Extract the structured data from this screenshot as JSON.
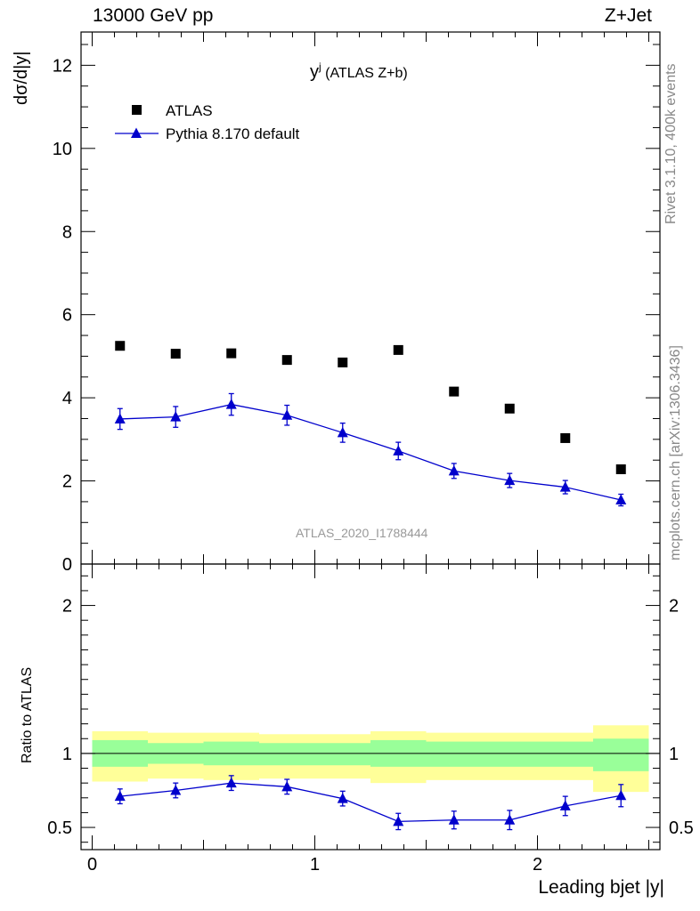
{
  "header": {
    "energy": "13000 GeV pp",
    "process": "Z+Jet"
  },
  "side_labels": {
    "rivet": "Rivet 3.1.10,  400k events",
    "source": "mcplots.cern.ch [arXiv:1306.3436]"
  },
  "chart_data": [
    {
      "type": "scatter",
      "panel": "main",
      "title_main": "y",
      "title_sup": "j",
      "title_rest": " (ATLAS Z+b)",
      "ylabel": "dσ/d|y|",
      "ylim": [
        0,
        12.8
      ],
      "xlim": [
        -0.05,
        2.55
      ],
      "yticks": [
        0,
        2,
        4,
        6,
        8,
        10,
        12
      ],
      "yticklabels": [
        "0",
        "2",
        "4",
        "6",
        "8",
        "10",
        "12"
      ],
      "watermark": "ATLAS_2020_I1788444",
      "legend": [
        {
          "key": "atlas",
          "label": "ATLAS",
          "marker": "square",
          "color": "#000000"
        },
        {
          "key": "pythia",
          "label": "Pythia 8.170 default",
          "marker": "triangle",
          "color": "#0000cc"
        }
      ],
      "series": [
        {
          "name": "ATLAS",
          "x": [
            0.125,
            0.375,
            0.625,
            0.875,
            1.125,
            1.375,
            1.625,
            1.875,
            2.125,
            2.375
          ],
          "values": [
            5.25,
            5.06,
            5.07,
            4.91,
            4.85,
            5.15,
            4.15,
            3.74,
            3.03,
            2.28
          ]
        },
        {
          "name": "Pythia 8.170 default",
          "x": [
            0.125,
            0.375,
            0.625,
            0.875,
            1.125,
            1.375,
            1.625,
            1.875,
            2.125,
            2.375
          ],
          "values": [
            3.49,
            3.54,
            3.84,
            3.58,
            3.16,
            2.72,
            2.24,
            2.01,
            1.85,
            1.54
          ],
          "err": [
            0.25,
            0.25,
            0.26,
            0.24,
            0.23,
            0.21,
            0.18,
            0.17,
            0.16,
            0.14
          ]
        }
      ]
    },
    {
      "type": "line",
      "panel": "ratio",
      "ylabel": "Ratio to ATLAS",
      "xlabel": "Leading bjet |y|",
      "ylim": [
        0.35,
        2.28
      ],
      "xlim": [
        -0.05,
        2.55
      ],
      "yticks": [
        0.5,
        1,
        2
      ],
      "yticklabels": [
        "0.5",
        "1",
        "2"
      ],
      "xticks": [
        0,
        1,
        2
      ],
      "xticklabels": [
        "0",
        "1",
        "2"
      ],
      "bins": [
        [
          0,
          0.25
        ],
        [
          0.25,
          0.5
        ],
        [
          0.5,
          0.75
        ],
        [
          0.75,
          1.0
        ],
        [
          1.0,
          1.25
        ],
        [
          1.25,
          1.5
        ],
        [
          1.5,
          1.75
        ],
        [
          1.75,
          2.0
        ],
        [
          2.0,
          2.25
        ],
        [
          2.25,
          2.5
        ]
      ],
      "band_stat": [
        [
          0.91,
          1.09
        ],
        [
          0.93,
          1.07
        ],
        [
          0.92,
          1.08
        ],
        [
          0.92,
          1.07
        ],
        [
          0.92,
          1.07
        ],
        [
          0.91,
          1.09
        ],
        [
          0.91,
          1.08
        ],
        [
          0.91,
          1.08
        ],
        [
          0.91,
          1.08
        ],
        [
          0.88,
          1.1
        ]
      ],
      "band_total": [
        [
          0.81,
          1.15
        ],
        [
          0.83,
          1.14
        ],
        [
          0.82,
          1.14
        ],
        [
          0.83,
          1.13
        ],
        [
          0.83,
          1.13
        ],
        [
          0.8,
          1.15
        ],
        [
          0.82,
          1.14
        ],
        [
          0.82,
          1.14
        ],
        [
          0.82,
          1.14
        ],
        [
          0.74,
          1.19
        ]
      ],
      "reference": 1,
      "series": [
        {
          "name": "Pythia 8.170 default",
          "x": [
            0.125,
            0.375,
            0.625,
            0.875,
            1.125,
            1.375,
            1.625,
            1.875,
            2.125,
            2.375
          ],
          "values": [
            0.71,
            0.75,
            0.8,
            0.775,
            0.695,
            0.54,
            0.55,
            0.55,
            0.645,
            0.715
          ],
          "err": [
            0.05,
            0.05,
            0.05,
            0.05,
            0.05,
            0.055,
            0.06,
            0.065,
            0.065,
            0.075
          ]
        }
      ]
    }
  ]
}
